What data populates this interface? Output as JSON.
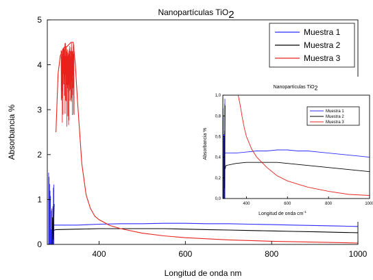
{
  "colors": {
    "Muestra 1": "#2b2bff",
    "Muestra 2": "#000000",
    "Muestra 3": "#e8211c"
  },
  "chart_data": [
    {
      "type": "line",
      "role": "main",
      "title": {
        "text": "Nanopartículas TiO",
        "sub": "2"
      },
      "xlabel": "Longitud de onda nm",
      "ylabel": "Absorbancia %",
      "xlim": [
        280,
        1000
      ],
      "ylim": [
        0,
        5
      ],
      "xticks": [
        400,
        600,
        800,
        1000
      ],
      "yticks": [
        0,
        1,
        2,
        3,
        4,
        5
      ],
      "grid": false,
      "legend": "top-right",
      "series": [
        {
          "name": "Muestra 1",
          "x": [
            290,
            300,
            350,
            400,
            450,
            500,
            550,
            600,
            650,
            700,
            750,
            800,
            850,
            900,
            950,
            1000
          ],
          "y": [
            0.43,
            0.43,
            0.43,
            0.45,
            0.46,
            0.46,
            0.47,
            0.47,
            0.46,
            0.46,
            0.45,
            0.44,
            0.43,
            0.42,
            0.41,
            0.4
          ]
        },
        {
          "name": "Muestra 2",
          "x": [
            290,
            300,
            350,
            400,
            450,
            500,
            550,
            600,
            650,
            700,
            750,
            800,
            850,
            900,
            950,
            1000
          ],
          "y": [
            0.3,
            0.33,
            0.34,
            0.35,
            0.35,
            0.35,
            0.35,
            0.34,
            0.33,
            0.32,
            0.31,
            0.3,
            0.29,
            0.28,
            0.27,
            0.26
          ]
        },
        {
          "name": "Muestra 3",
          "x": [
            300,
            305,
            310,
            315,
            320,
            325,
            330,
            335,
            340,
            345,
            350,
            360,
            370,
            380,
            390,
            400,
            425,
            450,
            500,
            550,
            600,
            700,
            800,
            900,
            1000
          ],
          "y": [
            2.5,
            3.8,
            4.2,
            4.3,
            4.4,
            4.4,
            4.45,
            4.5,
            4.5,
            4.0,
            3.2,
            1.8,
            1.1,
            0.8,
            0.63,
            0.55,
            0.42,
            0.35,
            0.25,
            0.19,
            0.15,
            0.1,
            0.07,
            0.05,
            0.03
          ]
        }
      ]
    },
    {
      "type": "line",
      "role": "inset",
      "title": {
        "text": "Nanopartículas TiO",
        "sub": "2"
      },
      "xlabel": {
        "text": "Longitud de onda cm",
        "sup": "-1"
      },
      "ylabel": "Absorbancia %",
      "xlim": [
        285,
        1000
      ],
      "ylim": [
        0,
        1.0
      ],
      "xticks": [
        400,
        600,
        800,
        1000
      ],
      "yticks": [
        0.0,
        0.2,
        0.4,
        0.6,
        0.8,
        1.0
      ],
      "ytick_labels": [
        "0,0",
        "0,2",
        "0,4",
        "0,6",
        "0,8",
        "1,0"
      ],
      "grid": false,
      "legend": "top-right",
      "series": [
        {
          "name": "Muestra 1",
          "x": [
            295,
            300,
            350,
            400,
            450,
            500,
            550,
            600,
            650,
            700,
            750,
            800,
            850,
            900,
            950,
            1000
          ],
          "y": [
            0.44,
            0.44,
            0.44,
            0.45,
            0.46,
            0.46,
            0.47,
            0.47,
            0.46,
            0.46,
            0.45,
            0.44,
            0.43,
            0.42,
            0.41,
            0.4
          ]
        },
        {
          "name": "Muestra 2",
          "x": [
            295,
            300,
            350,
            400,
            450,
            500,
            550,
            600,
            650,
            700,
            750,
            800,
            850,
            900,
            950,
            1000
          ],
          "y": [
            0.28,
            0.32,
            0.34,
            0.35,
            0.35,
            0.35,
            0.35,
            0.34,
            0.33,
            0.32,
            0.31,
            0.3,
            0.29,
            0.28,
            0.27,
            0.26
          ]
        },
        {
          "name": "Muestra 3",
          "x": [
            300,
            310,
            320,
            330,
            340,
            350,
            360,
            370,
            380,
            390,
            400,
            425,
            450,
            500,
            550,
            600,
            650,
            700,
            800,
            900,
            1000
          ],
          "y": [
            1.0,
            1.0,
            1.0,
            1.0,
            1.0,
            1.0,
            1.0,
            0.9,
            0.78,
            0.68,
            0.6,
            0.48,
            0.4,
            0.3,
            0.22,
            0.17,
            0.14,
            0.11,
            0.07,
            0.04,
            0.03
          ]
        }
      ]
    }
  ]
}
